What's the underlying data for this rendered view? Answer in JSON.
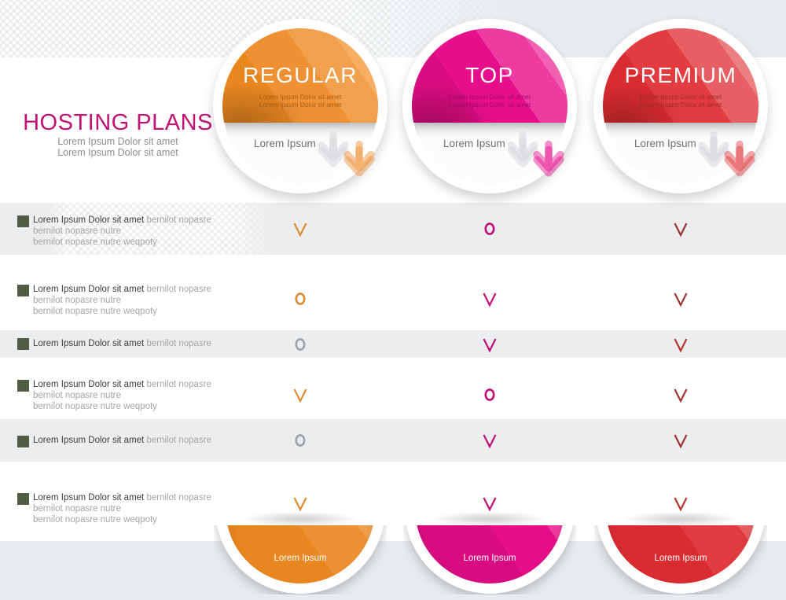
{
  "header": {
    "title": "HOSTING PLANS",
    "subtitle_line1": "Lorem Ipsum Dolor sit amet",
    "subtitle_line2": "Lorem Ipsum Dolor sit amet"
  },
  "plans": [
    {
      "name": "REGULAR",
      "tagline1": "Lorem Ipsum Dolor sit amet",
      "tagline2": "Lorem Ipsum Dolor sit amet",
      "subheader_label": "Lorem Ipsum",
      "footer_label": "Lorem Ipsum",
      "colors": {
        "base": "#ef9133",
        "light": "#f2a04b",
        "lighter": "#f5ae62",
        "deep": "#e8861f",
        "tagline": "#a55a11"
      }
    },
    {
      "name": "TOP",
      "tagline1": "Lorem Ipsum Dolor sit amet",
      "tagline2": "Lorem Ipsum Dolor sit amet",
      "subheader_label": "Lorem Ipsum",
      "footer_label": "Lorem Ipsum",
      "colors": {
        "base": "#e70e8c",
        "light": "#ee3ba2",
        "lighter": "#f160b2",
        "deep": "#d80c80",
        "tagline": "#9c0a67"
      }
    },
    {
      "name": "PREMIUM",
      "tagline1": "Lorem Ipsum Dolor sit amet",
      "tagline2": "Lorem Ipsum Dolor sit amet",
      "subheader_label": "Lorem Ipsum",
      "footer_label": "Lorem Ipsum",
      "colors": {
        "base": "#e23c40",
        "light": "#e75f62",
        "lighter": "#ec7f81",
        "deep": "#d92c31",
        "tagline": "#992a26"
      }
    }
  ],
  "features": [
    {
      "title": "Lorem Ipsum Dolor sit amet",
      "title_suffix": "bernilot nopasre",
      "line2": "bernilot nopasre nutre",
      "line3": "bernilot nopasre nutre weqpoty",
      "marks": [
        {
          "type": "check",
          "color": "#dc8c30"
        },
        {
          "type": "circle",
          "color": "#c00d78"
        },
        {
          "type": "check",
          "color": "#9e3231"
        }
      ]
    },
    {
      "title": "Lorem Ipsum Dolor sit amet",
      "title_suffix": "bernilot nopasre",
      "line2": "bernilot nopasre nutre",
      "line3": "bernilot nopasre nutre weqpoty",
      "marks": [
        {
          "type": "circle",
          "color": "#dc8c30"
        },
        {
          "type": "check",
          "color": "#c00d78"
        },
        {
          "type": "check",
          "color": "#9e3231"
        }
      ]
    },
    {
      "title": "Lorem Ipsum Dolor sit amet",
      "title_suffix": "bernilot nopasre",
      "line2": "",
      "line3": "",
      "marks": [
        {
          "type": "circle",
          "color": "#9ba2a9"
        },
        {
          "type": "check",
          "color": "#c00d78"
        },
        {
          "type": "check",
          "color": "#b5342e"
        }
      ]
    },
    {
      "title": "Lorem Ipsum Dolor sit amet",
      "title_suffix": "bernilot nopasre",
      "line2": "bernilot nopasre nutre",
      "line3": "bernilot nopasre nutre weqpoty",
      "marks": [
        {
          "type": "check",
          "color": "#dc8c30"
        },
        {
          "type": "circle",
          "color": "#c00d78"
        },
        {
          "type": "check",
          "color": "#9e3231"
        }
      ]
    },
    {
      "title": "Lorem Ipsum Dolor sit amet",
      "title_suffix": "bernilot nopasre",
      "line2": "",
      "line3": "",
      "marks": [
        {
          "type": "circle",
          "color": "#9ba2a9"
        },
        {
          "type": "check",
          "color": "#c00d78"
        },
        {
          "type": "check",
          "color": "#9e3231"
        }
      ]
    },
    {
      "title": "Lorem Ipsum Dolor sit amet",
      "title_suffix": "bernilot nopasre",
      "line2": "bernilot nopasre nutre",
      "line3": "bernilot nopasre nutre weqpoty",
      "marks": [
        {
          "type": "check",
          "color": "#dc8c30"
        },
        {
          "type": "check",
          "color": "#c00d78"
        },
        {
          "type": "check",
          "color": "#b5342e"
        }
      ]
    }
  ],
  "decor": {
    "bullet_color": "#505c44",
    "gray_arrow_color": "#d4d5d9",
    "title_color": "#c31273",
    "band_color": "#e9ecee"
  }
}
